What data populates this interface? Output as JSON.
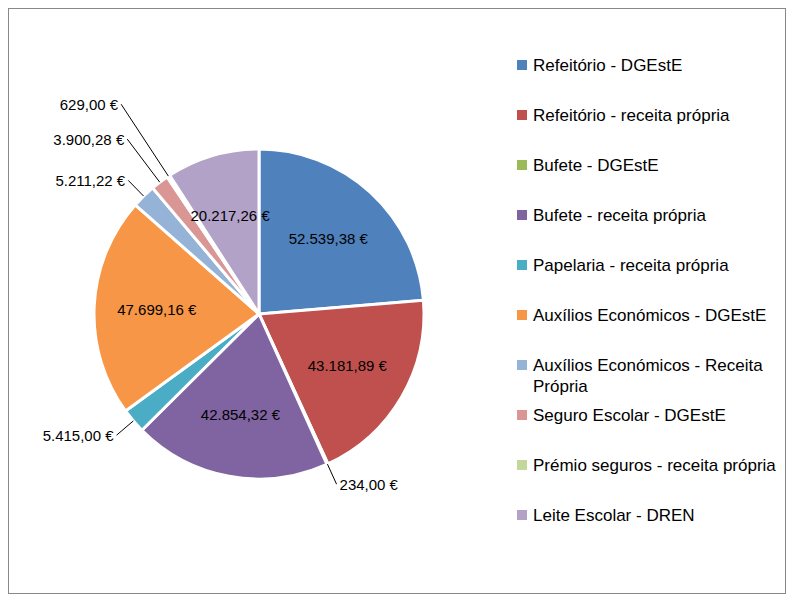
{
  "chart_data": {
    "type": "pie",
    "categories": [
      "Refeitório - DGEstE",
      "Refeitório - receita própria",
      "Bufete - DGEstE",
      "Bufete - receita própria",
      "Papelaria - receita própria",
      "Auxílios Económicos - DGEstE",
      "Auxílios Económicos - Receita Própria",
      "Seguro Escolar - DGEstE",
      "Prémio seguros - receita própria",
      "Leite Escolar - DREN"
    ],
    "values": [
      52539.38,
      43181.89,
      234.0,
      42854.32,
      5415.0,
      47699.16,
      5211.22,
      3900.28,
      629.0,
      20217.26
    ],
    "value_labels": [
      "52.539,38 €",
      "43.181,89 €",
      "234,00 €",
      "42.854,32 €",
      "5.415,00 €",
      "47.699,16 €",
      "5.211,22 €",
      "3.900,28 €",
      "629,00 €",
      "20.217,26 €"
    ],
    "colors": [
      "#4F81BD",
      "#C0504D",
      "#9BBB59",
      "#8064A2",
      "#4BACC6",
      "#F79646",
      "#95B3D7",
      "#D99694",
      "#C3D69B",
      "#B3A2C7"
    ],
    "data_labels": true,
    "legend": "right"
  }
}
